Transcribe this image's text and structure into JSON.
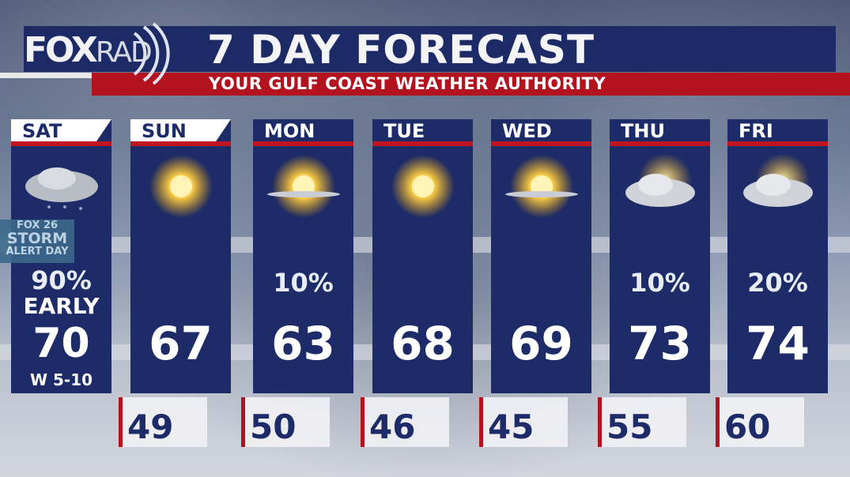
{
  "brand": {
    "logo": "FOXRAD",
    "logo_fox": "FOX",
    "logo_rad": "RAD"
  },
  "title": "7 DAY FORECAST",
  "subtitle": "YOUR GULF COAST WEATHER AUTHORITY",
  "badge": {
    "line1": "FOX 26",
    "line2": "STORM",
    "line3": "ALERT DAY"
  },
  "colors": {
    "navy": "#1d2b68",
    "red": "#b3121f"
  },
  "days": [
    {
      "day": "SAT",
      "icon": "rain-cloud-icon",
      "precip": "90%",
      "note": "EARLY",
      "high": "70",
      "wind": "W 5-10",
      "low": ""
    },
    {
      "day": "SUN",
      "icon": "sun-icon",
      "precip": "",
      "high": "67",
      "low": "49"
    },
    {
      "day": "MON",
      "icon": "mostly-sunny-icon",
      "precip": "10%",
      "high": "63",
      "low": "50"
    },
    {
      "day": "TUE",
      "icon": "sun-icon",
      "precip": "",
      "high": "68",
      "low": "46"
    },
    {
      "day": "WED",
      "icon": "mostly-sunny-icon",
      "precip": "",
      "high": "69",
      "low": "45"
    },
    {
      "day": "THU",
      "icon": "partly-cloudy-icon",
      "precip": "10%",
      "high": "73",
      "low": "55"
    },
    {
      "day": "FRI",
      "icon": "partly-cloudy-icon",
      "precip": "20%",
      "high": "74",
      "low": "60"
    }
  ]
}
